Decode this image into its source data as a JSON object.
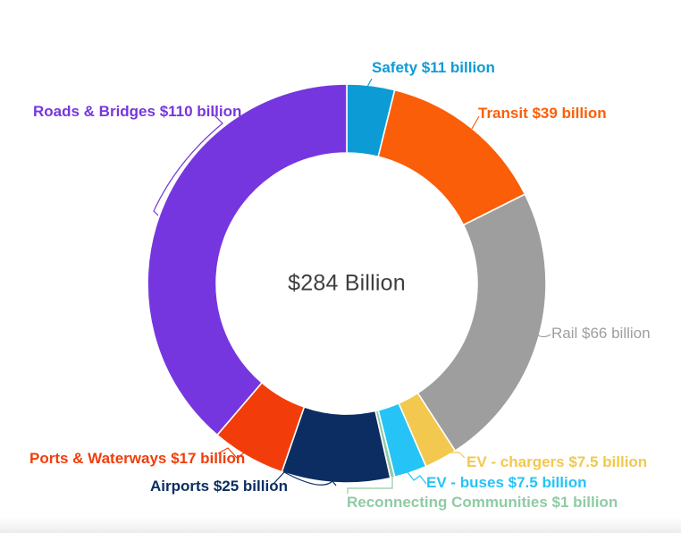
{
  "chart_data": {
    "type": "pie",
    "subtype": "donut",
    "title": "",
    "center_label": "$284 Billion",
    "total": 284,
    "units": "billions of USD",
    "legend_position": "none",
    "start_angle_deg": 0,
    "direction": "clockwise",
    "segments": [
      {
        "id": "safety",
        "category": "Safety",
        "value": 11,
        "label": "Safety $11 billion",
        "color": "#0D9BD5"
      },
      {
        "id": "transit",
        "category": "Transit",
        "value": 39,
        "label": "Transit $39 billion",
        "color": "#FB5E08"
      },
      {
        "id": "rail",
        "category": "Rail",
        "value": 66,
        "label": "Rail $66 billion",
        "color": "#9E9E9E"
      },
      {
        "id": "ev_chargers",
        "category": "EV - chargers",
        "value": 7.5,
        "label": "EV - chargers $7.5 billion",
        "color": "#F2C84E"
      },
      {
        "id": "ev_buses",
        "category": "EV - buses",
        "value": 7.5,
        "label": "EV - buses $7.5 billion",
        "color": "#26C4F6"
      },
      {
        "id": "reconnecting",
        "category": "Reconnecting Communities",
        "value": 1,
        "label": "Reconnecting Communities $1 billion",
        "color": "#8FCBA4"
      },
      {
        "id": "airports",
        "category": "Airports",
        "value": 25,
        "label": "Airports $25 billion",
        "color": "#0C2D62"
      },
      {
        "id": "ports",
        "category": "Ports & Waterways",
        "value": 17,
        "label": "Ports & Waterways $17 billion",
        "color": "#F23D0A"
      },
      {
        "id": "roads",
        "category": "Roads & Bridges",
        "value": 110,
        "label": "Roads & Bridges $110 billion",
        "color": "#7636DF"
      }
    ]
  }
}
